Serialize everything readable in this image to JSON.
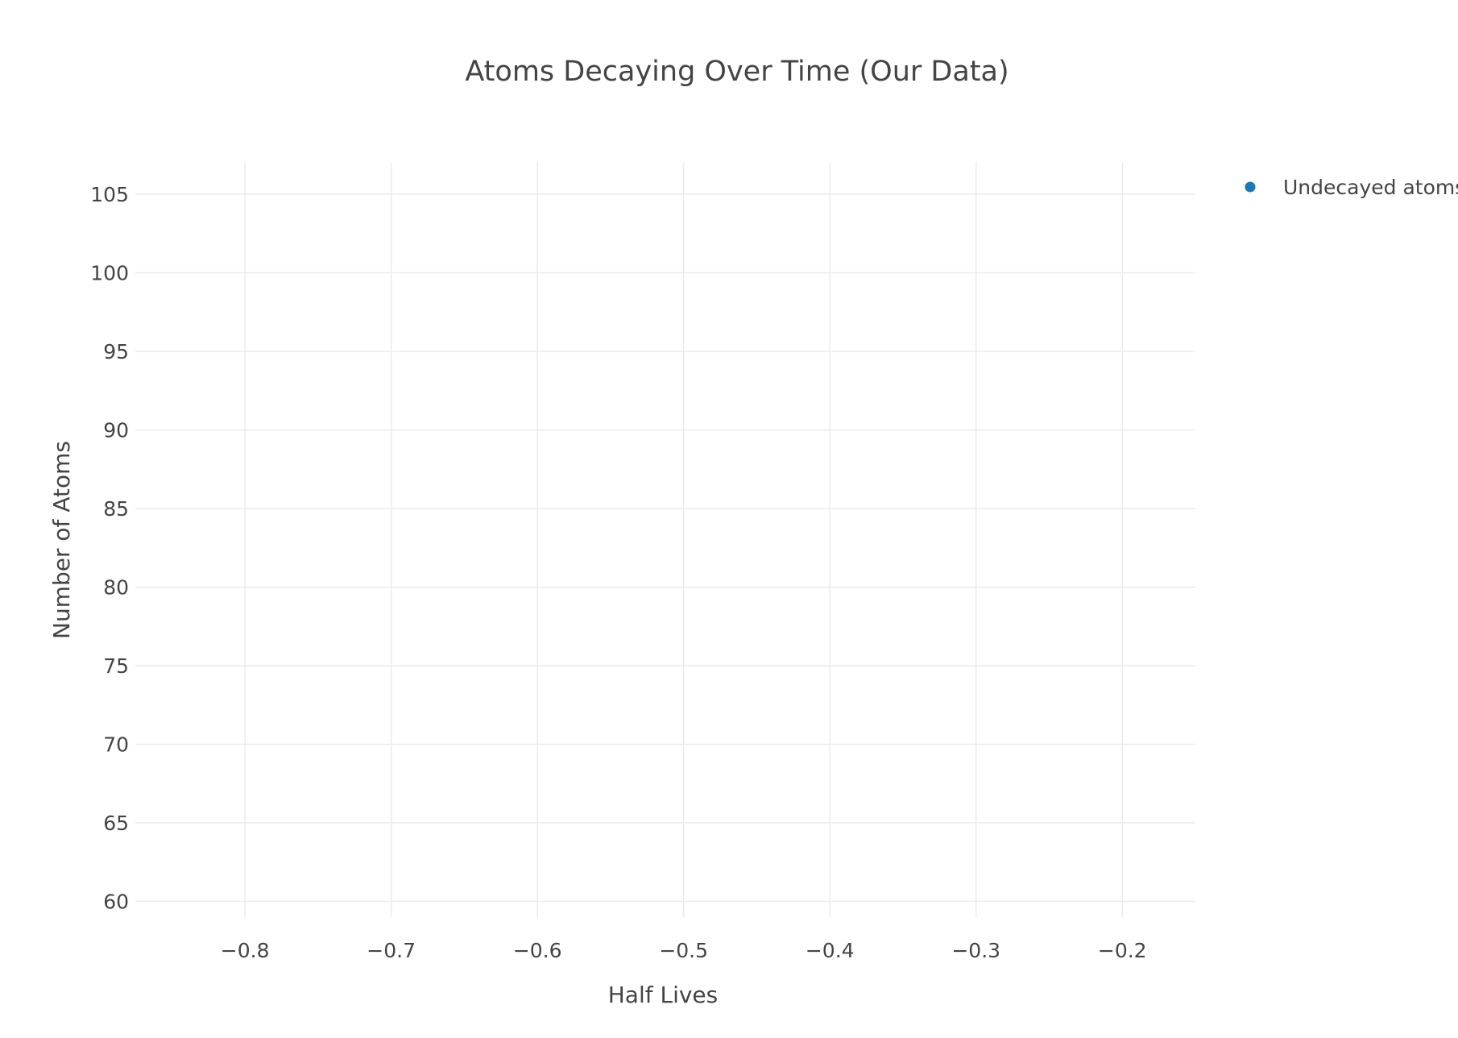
{
  "chart_data": {
    "type": "scatter",
    "title": "Atoms Decaying Over Time (Our Data)",
    "xlabel": "Half Lives",
    "ylabel": "Number of Atoms",
    "xlim": [
      -0.875,
      -0.15
    ],
    "ylim": [
      59,
      107
    ],
    "x_ticks": [
      -0.8,
      -0.7,
      -0.6,
      -0.5,
      -0.4,
      -0.3,
      -0.2
    ],
    "x_tick_labels": [
      "−0.8",
      "−0.7",
      "−0.6",
      "−0.5",
      "−0.4",
      "−0.3",
      "−0.2"
    ],
    "y_ticks": [
      60,
      65,
      70,
      75,
      80,
      85,
      90,
      95,
      100,
      105
    ],
    "y_tick_labels": [
      "60",
      "65",
      "70",
      "75",
      "80",
      "85",
      "90",
      "95",
      "100",
      "105"
    ],
    "grid": true,
    "legend_position": "top-right",
    "series": [
      {
        "name": "Undecayed atoms",
        "color": "#1f77b4",
        "marker": "circle",
        "x": [],
        "y": []
      }
    ],
    "colors": {
      "grid": "#ebebeb",
      "text": "#444444",
      "background": "#ffffff"
    }
  }
}
